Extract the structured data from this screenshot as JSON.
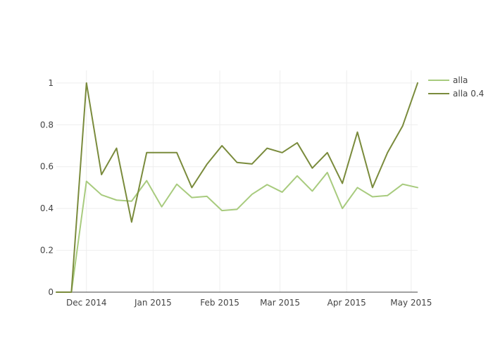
{
  "chart_data": {
    "type": "line",
    "xlabel": "",
    "ylabel": "",
    "x": [
      "2014-11-17",
      "2014-11-24",
      "2014-12-01",
      "2014-12-08",
      "2014-12-15",
      "2014-12-22",
      "2014-12-29",
      "2015-01-05",
      "2015-01-12",
      "2015-01-19",
      "2015-01-26",
      "2015-02-02",
      "2015-02-09",
      "2015-02-16",
      "2015-02-23",
      "2015-03-02",
      "2015-03-09",
      "2015-03-16",
      "2015-03-23",
      "2015-03-30",
      "2015-04-06",
      "2015-04-13",
      "2015-04-20",
      "2015-04-27",
      "2015-05-04"
    ],
    "series": [
      {
        "name": "alla",
        "color": "#a8cb7e",
        "values": [
          0,
          0,
          0.53,
          0.465,
          0.44,
          0.435,
          0.533,
          0.408,
          0.516,
          0.452,
          0.458,
          0.39,
          0.396,
          0.468,
          0.514,
          0.478,
          0.556,
          0.483,
          0.572,
          0.4,
          0.5,
          0.456,
          0.462,
          0.516,
          0.5
        ]
      },
      {
        "name": "alla 0.4",
        "color": "#7a8b3c",
        "values": [
          0,
          0,
          1.0,
          0.562,
          0.688,
          0.335,
          0.667,
          0.667,
          0.667,
          0.5,
          0.611,
          0.7,
          0.62,
          0.613,
          0.688,
          0.667,
          0.714,
          0.593,
          0.667,
          0.52,
          0.765,
          0.5,
          0.667,
          0.794,
          1.0
        ]
      }
    ],
    "xlim": [
      "2014-11-17",
      "2015-05-04"
    ],
    "ylim": [
      0,
      1.06
    ],
    "x_ticks": [
      {
        "date": "2014-12-01",
        "label": "Dec 2014"
      },
      {
        "date": "2015-01-01",
        "label": "Jan 2015"
      },
      {
        "date": "2015-02-01",
        "label": "Feb 2015"
      },
      {
        "date": "2015-03-01",
        "label": "Mar 2015"
      },
      {
        "date": "2015-04-01",
        "label": "Apr 2015"
      },
      {
        "date": "2015-05-01",
        "label": "May 2015"
      }
    ],
    "y_ticks": [
      {
        "value": 0,
        "label": "0"
      },
      {
        "value": 0.2,
        "label": "0.2"
      },
      {
        "value": 0.4,
        "label": "0.4"
      },
      {
        "value": 0.6,
        "label": "0.6"
      },
      {
        "value": 0.8,
        "label": "0.8"
      },
      {
        "value": 1,
        "label": "1"
      }
    ],
    "grid": true,
    "legend_position": "top-right"
  }
}
